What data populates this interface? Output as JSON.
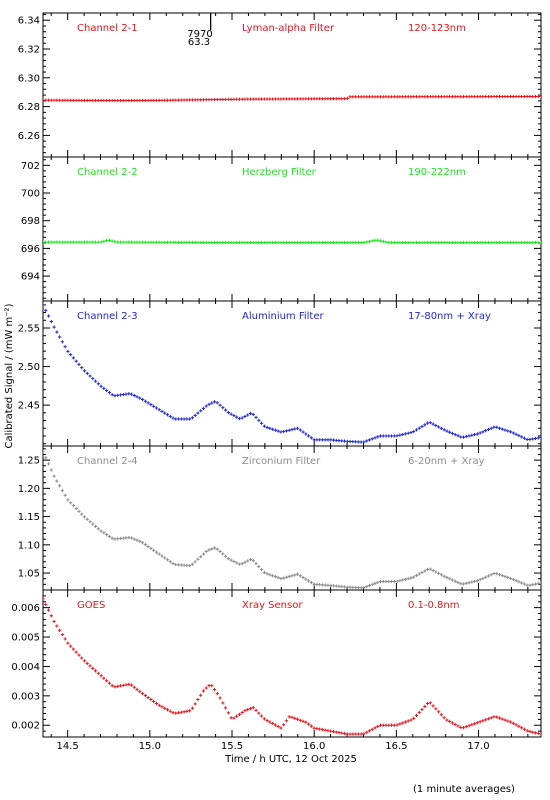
{
  "figure": {
    "xlabel": "Time / h UTC, 12 Oct 2025",
    "ylabel": "Calibrated Signal / (mW m⁻²)",
    "footnote": "(1 minute averages)",
    "marker_top": "7970",
    "marker_bottom": "63.3"
  },
  "chart_data": [
    {
      "type": "scatter",
      "name": "Channel 2-1",
      "channel": "Channel 2-1",
      "filter": "Lyman-alpha Filter",
      "band": "120-123nm",
      "color": "#e8141e",
      "xlim": [
        14.35,
        17.38
      ],
      "ylim": [
        6.245,
        6.345
      ],
      "yticks": [
        6.26,
        6.28,
        6.3,
        6.32,
        6.34
      ],
      "yticklabels": [
        "6.26",
        "6.28",
        "6.30",
        "6.32",
        "6.34"
      ],
      "x": [
        14.35,
        14.6,
        14.85,
        15.1,
        15.35,
        15.6,
        15.85,
        16.1,
        16.2,
        16.21,
        16.45,
        16.7,
        16.95,
        17.2,
        17.38
      ],
      "y": [
        6.2845,
        6.2843,
        6.2842,
        6.2844,
        6.2848,
        6.2852,
        6.2853,
        6.2855,
        6.2855,
        6.2868,
        6.2868,
        6.2869,
        6.2869,
        6.287,
        6.287
      ]
    },
    {
      "type": "scatter",
      "name": "Channel 2-2",
      "channel": "Channel 2-2",
      "filter": "Herzberg Filter",
      "band": "190-222nm",
      "color": "#1ee61e",
      "xlim": [
        14.35,
        17.38
      ],
      "ylim": [
        692.2,
        702.6
      ],
      "yticks": [
        694,
        696,
        698,
        700,
        702
      ],
      "yticklabels": [
        "694",
        "696",
        "698",
        "700",
        "702"
      ],
      "x": [
        14.35,
        14.7,
        14.75,
        14.8,
        15.5,
        16.3,
        16.38,
        16.45,
        17.0,
        17.38
      ],
      "y": [
        696.45,
        696.45,
        696.6,
        696.45,
        696.42,
        696.42,
        696.6,
        696.42,
        696.42,
        696.42
      ]
    },
    {
      "type": "scatter",
      "name": "Channel 2-3",
      "channel": "Channel 2-3",
      "filter": "Aluminium Filter",
      "band": "17-80nm + Xray",
      "color": "#1e28d2",
      "xlim": [
        14.35,
        17.38
      ],
      "ylim": [
        2.397,
        2.585
      ],
      "yticks": [
        2.45,
        2.5,
        2.55
      ],
      "yticklabels": [
        "2.45",
        "2.50",
        "2.55"
      ],
      "x": [
        14.35,
        14.42,
        14.5,
        14.6,
        14.7,
        14.78,
        14.88,
        14.95,
        15.05,
        15.15,
        15.25,
        15.35,
        15.4,
        15.48,
        15.55,
        15.62,
        15.7,
        15.8,
        15.9,
        16.0,
        16.1,
        16.2,
        16.3,
        16.4,
        16.5,
        16.6,
        16.7,
        16.8,
        16.9,
        17.0,
        17.1,
        17.2,
        17.3,
        17.38
      ],
      "y": [
        2.58,
        2.55,
        2.52,
        2.495,
        2.475,
        2.462,
        2.465,
        2.458,
        2.445,
        2.432,
        2.432,
        2.45,
        2.455,
        2.44,
        2.432,
        2.44,
        2.422,
        2.415,
        2.42,
        2.405,
        2.405,
        2.403,
        2.402,
        2.41,
        2.41,
        2.415,
        2.428,
        2.417,
        2.408,
        2.413,
        2.422,
        2.415,
        2.405,
        2.408
      ]
    },
    {
      "type": "scatter",
      "name": "Channel 2-4",
      "channel": "Channel 2-4",
      "filter": "Zirconium Filter",
      "band": "6-20nm + Xray",
      "color": "#8c8c8c",
      "xlim": [
        14.35,
        17.38
      ],
      "ylim": [
        1.02,
        1.275
      ],
      "yticks": [
        1.05,
        1.1,
        1.15,
        1.2,
        1.25
      ],
      "yticklabels": [
        "1.05",
        "1.10",
        "1.15",
        "1.20",
        "1.25"
      ],
      "x": [
        14.35,
        14.42,
        14.5,
        14.6,
        14.7,
        14.78,
        14.88,
        14.95,
        15.05,
        15.15,
        15.25,
        15.35,
        15.4,
        15.48,
        15.55,
        15.62,
        15.7,
        15.8,
        15.9,
        16.0,
        16.1,
        16.2,
        16.3,
        16.4,
        16.5,
        16.6,
        16.7,
        16.8,
        16.9,
        17.0,
        17.1,
        17.2,
        17.3,
        17.38
      ],
      "y": [
        1.265,
        1.22,
        1.18,
        1.15,
        1.125,
        1.11,
        1.113,
        1.105,
        1.085,
        1.065,
        1.063,
        1.09,
        1.095,
        1.075,
        1.065,
        1.075,
        1.05,
        1.04,
        1.048,
        1.03,
        1.028,
        1.025,
        1.024,
        1.035,
        1.035,
        1.042,
        1.058,
        1.043,
        1.03,
        1.037,
        1.05,
        1.04,
        1.028,
        1.032
      ]
    },
    {
      "type": "scatter",
      "name": "GOES",
      "channel": "GOES",
      "filter": "Xray Sensor",
      "band": "0.1-0.8nm",
      "color": "#e8141e",
      "xlim": [
        14.35,
        17.38
      ],
      "ylim": [
        0.0016,
        0.0066
      ],
      "yticks": [
        0.002,
        0.003,
        0.004,
        0.005,
        0.006
      ],
      "yticklabels": [
        "0.002",
        "0.003",
        "0.004",
        "0.005",
        "0.006"
      ],
      "x": [
        14.35,
        14.42,
        14.5,
        14.6,
        14.7,
        14.78,
        14.88,
        14.95,
        15.05,
        15.15,
        15.25,
        15.33,
        15.37,
        15.42,
        15.5,
        15.58,
        15.63,
        15.7,
        15.8,
        15.85,
        15.95,
        16.0,
        16.1,
        16.2,
        16.3,
        16.4,
        16.5,
        16.6,
        16.7,
        16.8,
        16.9,
        17.0,
        17.1,
        17.2,
        17.3,
        17.38
      ],
      "y": [
        0.0063,
        0.0055,
        0.0048,
        0.0042,
        0.0037,
        0.0033,
        0.0034,
        0.0031,
        0.0027,
        0.0024,
        0.0025,
        0.0032,
        0.0034,
        0.003,
        0.0022,
        0.0025,
        0.0026,
        0.0022,
        0.0019,
        0.0023,
        0.0021,
        0.0019,
        0.0018,
        0.0017,
        0.0017,
        0.002,
        0.002,
        0.0022,
        0.0028,
        0.0022,
        0.0019,
        0.0021,
        0.0023,
        0.0021,
        0.0018,
        0.0017
      ]
    }
  ],
  "xaxis": {
    "ticks": [
      14.5,
      15.0,
      15.5,
      16.0,
      16.5,
      17.0
    ],
    "ticklabels": [
      "14.5",
      "15.0",
      "15.5",
      "16.0",
      "16.5",
      "17.0"
    ],
    "minor_step": 0.1
  },
  "marker_x": 15.37
}
